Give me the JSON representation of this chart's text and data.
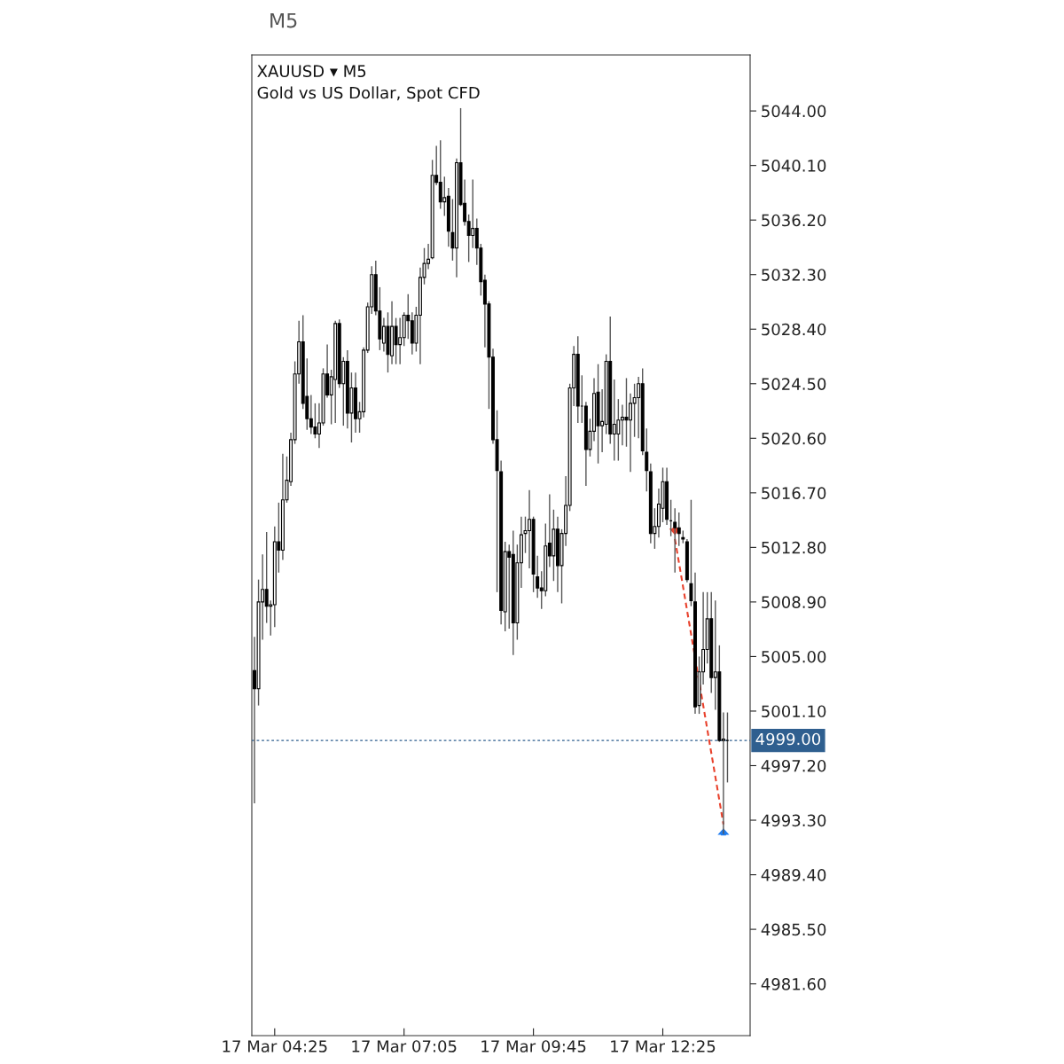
{
  "chart_data": {
    "type": "candlestick",
    "title": "XAUUSD ▾ M5",
    "subtitle": "Gold vs US Dollar, Spot CFD",
    "annotations": [
      "M5"
    ],
    "categories": [
      null,
      null,
      null,
      null,
      null,
      "17 Mar 04:25",
      null,
      null,
      null,
      null,
      null,
      null,
      null,
      null,
      null,
      null,
      null,
      null,
      null,
      null,
      null,
      null,
      null,
      null,
      null,
      null,
      null,
      null,
      null,
      null,
      null,
      null,
      null,
      null,
      null,
      null,
      null,
      "17 Mar 07:05",
      null,
      null,
      null,
      null,
      null,
      null,
      null,
      null,
      null,
      null,
      null,
      null,
      null,
      null,
      null,
      null,
      null,
      null,
      null,
      null,
      null,
      null,
      null,
      null,
      null,
      null,
      null,
      null,
      null,
      null,
      null,
      "17 Mar 09:45",
      null,
      null,
      null,
      null,
      null,
      null,
      null,
      null,
      null,
      null,
      null,
      null,
      null,
      null,
      null,
      null,
      null,
      null,
      null,
      null,
      null,
      null,
      null,
      null,
      null,
      null,
      null,
      null,
      null,
      null,
      null,
      "17 Mar 12:25",
      null,
      null,
      null,
      null,
      null,
      null,
      null,
      null,
      null,
      null,
      null,
      null,
      null,
      null,
      null,
      null
    ],
    "ohlc": [
      [
        5004.0,
        5006.4,
        4994.5,
        5002.7
      ],
      [
        5002.7,
        5010.5,
        5001.5,
        5008.9
      ],
      [
        5008.9,
        5012.3,
        5006.2,
        5009.8
      ],
      [
        5009.8,
        5013.9,
        5007.4,
        5008.6
      ],
      [
        5008.6,
        5009.0,
        5006.5,
        5008.7
      ],
      [
        5008.7,
        5014.3,
        5007.1,
        5013.2
      ],
      [
        5013.2,
        5016.0,
        5011.0,
        5012.6
      ],
      [
        5012.6,
        5019.5,
        5011.9,
        5016.2
      ],
      [
        5016.2,
        5019.3,
        5016.0,
        5017.6
      ],
      [
        5017.5,
        5021.0,
        5017.2,
        5020.5
      ],
      [
        5020.5,
        5026.1,
        5020.2,
        5025.2
      ],
      [
        5025.2,
        5029.0,
        5024.5,
        5027.5
      ],
      [
        5027.5,
        5029.4,
        5022.7,
        5023.1
      ],
      [
        5023.6,
        5026.3,
        5021.2,
        5022.0
      ],
      [
        5022.0,
        5023.7,
        5020.9,
        5021.4
      ],
      [
        5021.4,
        5023.1,
        5020.6,
        5020.9
      ],
      [
        5020.9,
        5023.1,
        5019.9,
        5021.7
      ],
      [
        5021.7,
        5025.6,
        5021.5,
        5025.2
      ],
      [
        5025.2,
        5027.3,
        5023.5,
        5023.7
      ],
      [
        5023.7,
        5025.5,
        5021.6,
        5025.0
      ],
      [
        5024.8,
        5029.0,
        5021.7,
        5028.8
      ],
      [
        5028.8,
        5029.1,
        5024.2,
        5024.5
      ],
      [
        5024.5,
        5026.4,
        5021.5,
        5026.1
      ],
      [
        5026.1,
        5026.9,
        5021.3,
        5022.4
      ],
      [
        5022.4,
        5025.3,
        5020.3,
        5024.2
      ],
      [
        5024.2,
        5025.3,
        5021.0,
        5022.0
      ],
      [
        5022.0,
        5023.2,
        5021.0,
        5022.5
      ],
      [
        5022.5,
        5027.1,
        5022.1,
        5026.9
      ],
      [
        5026.9,
        5030.3,
        5026.7,
        5030.0
      ],
      [
        5030.0,
        5032.9,
        5029.5,
        5032.3
      ],
      [
        5032.3,
        5033.3,
        5029.4,
        5029.7
      ],
      [
        5029.7,
        5031.4,
        5026.9,
        5027.7
      ],
      [
        5027.4,
        5029.2,
        5026.8,
        5028.6
      ],
      [
        5028.6,
        5029.6,
        5025.3,
        5026.6
      ],
      [
        5026.5,
        5030.4,
        5025.9,
        5028.6
      ],
      [
        5028.6,
        5029.2,
        5025.9,
        5027.3
      ],
      [
        5027.3,
        5029.2,
        5025.9,
        5027.8
      ],
      [
        5027.8,
        5029.6,
        5027.2,
        5029.4
      ],
      [
        5029.4,
        5030.9,
        5027.7,
        5029.0
      ],
      [
        5029.0,
        5029.6,
        5026.6,
        5027.4
      ],
      [
        5027.4,
        5030.0,
        5026.8,
        5029.4
      ],
      [
        5029.4,
        5032.8,
        5025.9,
        5032.1
      ],
      [
        5032.1,
        5034.2,
        5031.6,
        5033.1
      ],
      [
        5033.1,
        5034.5,
        5032.7,
        5033.4
      ],
      [
        5033.5,
        5040.5,
        5033.4,
        5039.4
      ],
      [
        5039.4,
        5041.5,
        5038.7,
        5038.9
      ],
      [
        5038.9,
        5041.9,
        5037.0,
        5037.5
      ],
      [
        5037.5,
        5039.3,
        5036.5,
        5037.8
      ],
      [
        5037.9,
        5038.5,
        5034.3,
        5035.4
      ],
      [
        5035.3,
        5037.7,
        5033.3,
        5034.2
      ],
      [
        5034.2,
        5040.6,
        5032.1,
        5040.3
      ],
      [
        5040.3,
        5044.2,
        5037.2,
        5037.3
      ],
      [
        5037.4,
        5039.1,
        5035.8,
        5036.1
      ],
      [
        5036.1,
        5036.6,
        5033.2,
        5035.1
      ],
      [
        5035.1,
        5039.1,
        5034.2,
        5035.6
      ],
      [
        5035.6,
        5036.3,
        5033.0,
        5034.2
      ],
      [
        5034.2,
        5034.5,
        5030.8,
        5031.8
      ],
      [
        5031.9,
        5032.3,
        5027.1,
        5030.2
      ],
      [
        5030.2,
        5030.4,
        5022.7,
        5026.4
      ],
      [
        5026.4,
        5027.0,
        5020.2,
        5020.5
      ],
      [
        5020.5,
        5022.6,
        5009.6,
        5018.3
      ],
      [
        5018.2,
        5019.0,
        5007.3,
        5008.3
      ],
      [
        5008.2,
        5013.2,
        5006.8,
        5012.5
      ],
      [
        5012.5,
        5013.0,
        5007.0,
        5012.1
      ],
      [
        5012.3,
        5014.0,
        5005.1,
        5007.4
      ],
      [
        5007.4,
        5013.0,
        5006.2,
        5011.7
      ],
      [
        5011.7,
        5015.0,
        5009.9,
        5013.7
      ],
      [
        5013.8,
        5015.0,
        5012.4,
        5014.0
      ],
      [
        5014.0,
        5016.9,
        5011.3,
        5014.8
      ],
      [
        5014.8,
        5015.0,
        5009.6,
        5010.9
      ],
      [
        5010.7,
        5012.2,
        5009.2,
        5009.9
      ],
      [
        5009.9,
        5011.1,
        5008.4,
        5009.7
      ],
      [
        5009.7,
        5014.5,
        5009.3,
        5012.9
      ],
      [
        5013.1,
        5016.6,
        5011.4,
        5012.2
      ],
      [
        5012.2,
        5015.5,
        5010.4,
        5014.1
      ],
      [
        5014.1,
        5015.0,
        5009.6,
        5011.5
      ],
      [
        5011.5,
        5014.1,
        5008.8,
        5013.8
      ],
      [
        5013.8,
        5017.9,
        5012.9,
        5015.8
      ],
      [
        5015.8,
        5024.5,
        5015.4,
        5024.2
      ],
      [
        5024.2,
        5027.2,
        5022.9,
        5026.6
      ],
      [
        5026.6,
        5027.9,
        5021.7,
        5022.9
      ],
      [
        5022.9,
        5025.1,
        5021.7,
        5022.9
      ],
      [
        5022.9,
        5023.2,
        5017.2,
        5019.8
      ],
      [
        5019.8,
        5022.0,
        5019.3,
        5021.1
      ],
      [
        5021.1,
        5024.9,
        5020.4,
        5023.8
      ],
      [
        5023.9,
        5025.9,
        5018.8,
        5021.5
      ],
      [
        5021.5,
        5024.1,
        5019.6,
        5021.8
      ],
      [
        5021.6,
        5026.6,
        5020.9,
        5026.1
      ],
      [
        5026.1,
        5029.3,
        5020.2,
        5020.9
      ],
      [
        5020.9,
        5024.8,
        5019.0,
        5021.6
      ],
      [
        5020.9,
        5023.4,
        5019.0,
        5021.9
      ],
      [
        5021.9,
        5023.0,
        5020.1,
        5022.1
      ],
      [
        5022.1,
        5024.9,
        5020.0,
        5021.9
      ],
      [
        5021.9,
        5023.8,
        5018.2,
        5023.1
      ],
      [
        5023.1,
        5024.5,
        5020.7,
        5023.5
      ],
      [
        5023.5,
        5025.0,
        5020.6,
        5024.5
      ],
      [
        5024.5,
        5025.6,
        5019.4,
        5019.7
      ],
      [
        5019.6,
        5021.3,
        5016.8,
        5018.3
      ],
      [
        5018.2,
        5018.8,
        5013.1,
        5013.8
      ],
      [
        5013.8,
        5015.6,
        5012.7,
        5014.3
      ],
      [
        5014.3,
        5017.0,
        5013.5,
        5015.9
      ],
      [
        5015.6,
        5018.5,
        5014.6,
        5017.5
      ],
      [
        5017.5,
        5018.5,
        5014.4,
        5014.8
      ],
      [
        5014.7,
        5016.2,
        5013.6,
        5014.7
      ],
      [
        5014.6,
        5015.6,
        5011.0,
        5014.2
      ],
      [
        5014.2,
        5015.3,
        5012.9,
        5013.8
      ],
      [
        5013.5,
        5014.0,
        5013.1,
        5013.4
      ],
      [
        5013.2,
        5013.4,
        5010.3,
        5010.5
      ],
      [
        5010.2,
        5016.2,
        5008.6,
        5009.0
      ],
      [
        5008.9,
        5011.0,
        5000.9,
        5001.4
      ],
      [
        5001.5,
        5005.0,
        5000.9,
        5003.9
      ],
      [
        5003.9,
        5009.6,
        5003.0,
        5005.5
      ],
      [
        5005.5,
        5009.6,
        5004.5,
        5007.7
      ],
      [
        5007.7,
        5009.6,
        5002.4,
        5003.5
      ],
      [
        5003.5,
        5009.0,
        5001.2,
        5003.9
      ],
      [
        5003.9,
        5005.8,
        4998.9,
        4999.0
      ],
      [
        4999.0,
        5001.0,
        4992.3,
        4999.1
      ],
      [
        4999.0,
        5001.0,
        4996.0,
        4999.0
      ]
    ],
    "series": [
      {
        "type": "line",
        "values": [
          null,
          null,
          null,
          null,
          null,
          null,
          null,
          null,
          null,
          null,
          null,
          null,
          null,
          null,
          null,
          null,
          null,
          null,
          null,
          null,
          null,
          null,
          null,
          null,
          null,
          null,
          null,
          null,
          null,
          null,
          null,
          null,
          null,
          null,
          null,
          null,
          null,
          null,
          null,
          null,
          null,
          null,
          null,
          null,
          null,
          null,
          null,
          null,
          null,
          null,
          null,
          null,
          null,
          null,
          null,
          null,
          null,
          null,
          null,
          null,
          null,
          null,
          null,
          null,
          null,
          null,
          null,
          null,
          null,
          null,
          null,
          null,
          null,
          null,
          null,
          null,
          null,
          null,
          null,
          null,
          null,
          null,
          null,
          null,
          null,
          null,
          null,
          null,
          null,
          null,
          null,
          null,
          null,
          null,
          null,
          null,
          null,
          null,
          null,
          null,
          null,
          null,
          null,
          null,
          5013.4,
          null,
          null,
          null,
          null,
          null,
          null,
          null,
          null,
          null,
          null,
          null,
          4993.0,
          null
        ],
        "color": "#e8412c",
        "line_style": "dashed"
      }
    ],
    "ref_lines": [
      {
        "axis": "y",
        "value": 4999.0,
        "label": "4999.00",
        "color": "#2f5f8f",
        "line_style": "dotted"
      }
    ],
    "ylim": [
      4977.9,
      5048.0
    ],
    "yticks": [
      {
        "value": 5044.0,
        "label": "5044.00"
      },
      {
        "value": 5040.1,
        "label": "5040.10"
      },
      {
        "value": 5036.2,
        "label": "5036.20"
      },
      {
        "value": 5032.3,
        "label": "5032.30"
      },
      {
        "value": 5028.4,
        "label": "5028.40"
      },
      {
        "value": 5024.5,
        "label": "5024.50"
      },
      {
        "value": 5020.6,
        "label": "5020.60"
      },
      {
        "value": 5016.7,
        "label": "5016.70"
      },
      {
        "value": 5012.8,
        "label": "5012.80"
      },
      {
        "value": 5008.9,
        "label": "5008.90"
      },
      {
        "value": 5005.0,
        "label": "5005.00"
      },
      {
        "value": 5001.1,
        "label": "5001.10"
      },
      {
        "value": 4997.2,
        "label": "4997.20"
      },
      {
        "value": 4993.3,
        "label": "4993.30"
      },
      {
        "value": 4989.4,
        "label": "4989.40"
      },
      {
        "value": 4985.5,
        "label": "4985.50"
      },
      {
        "value": 4981.6,
        "label": "4981.60"
      }
    ],
    "grid": false
  }
}
